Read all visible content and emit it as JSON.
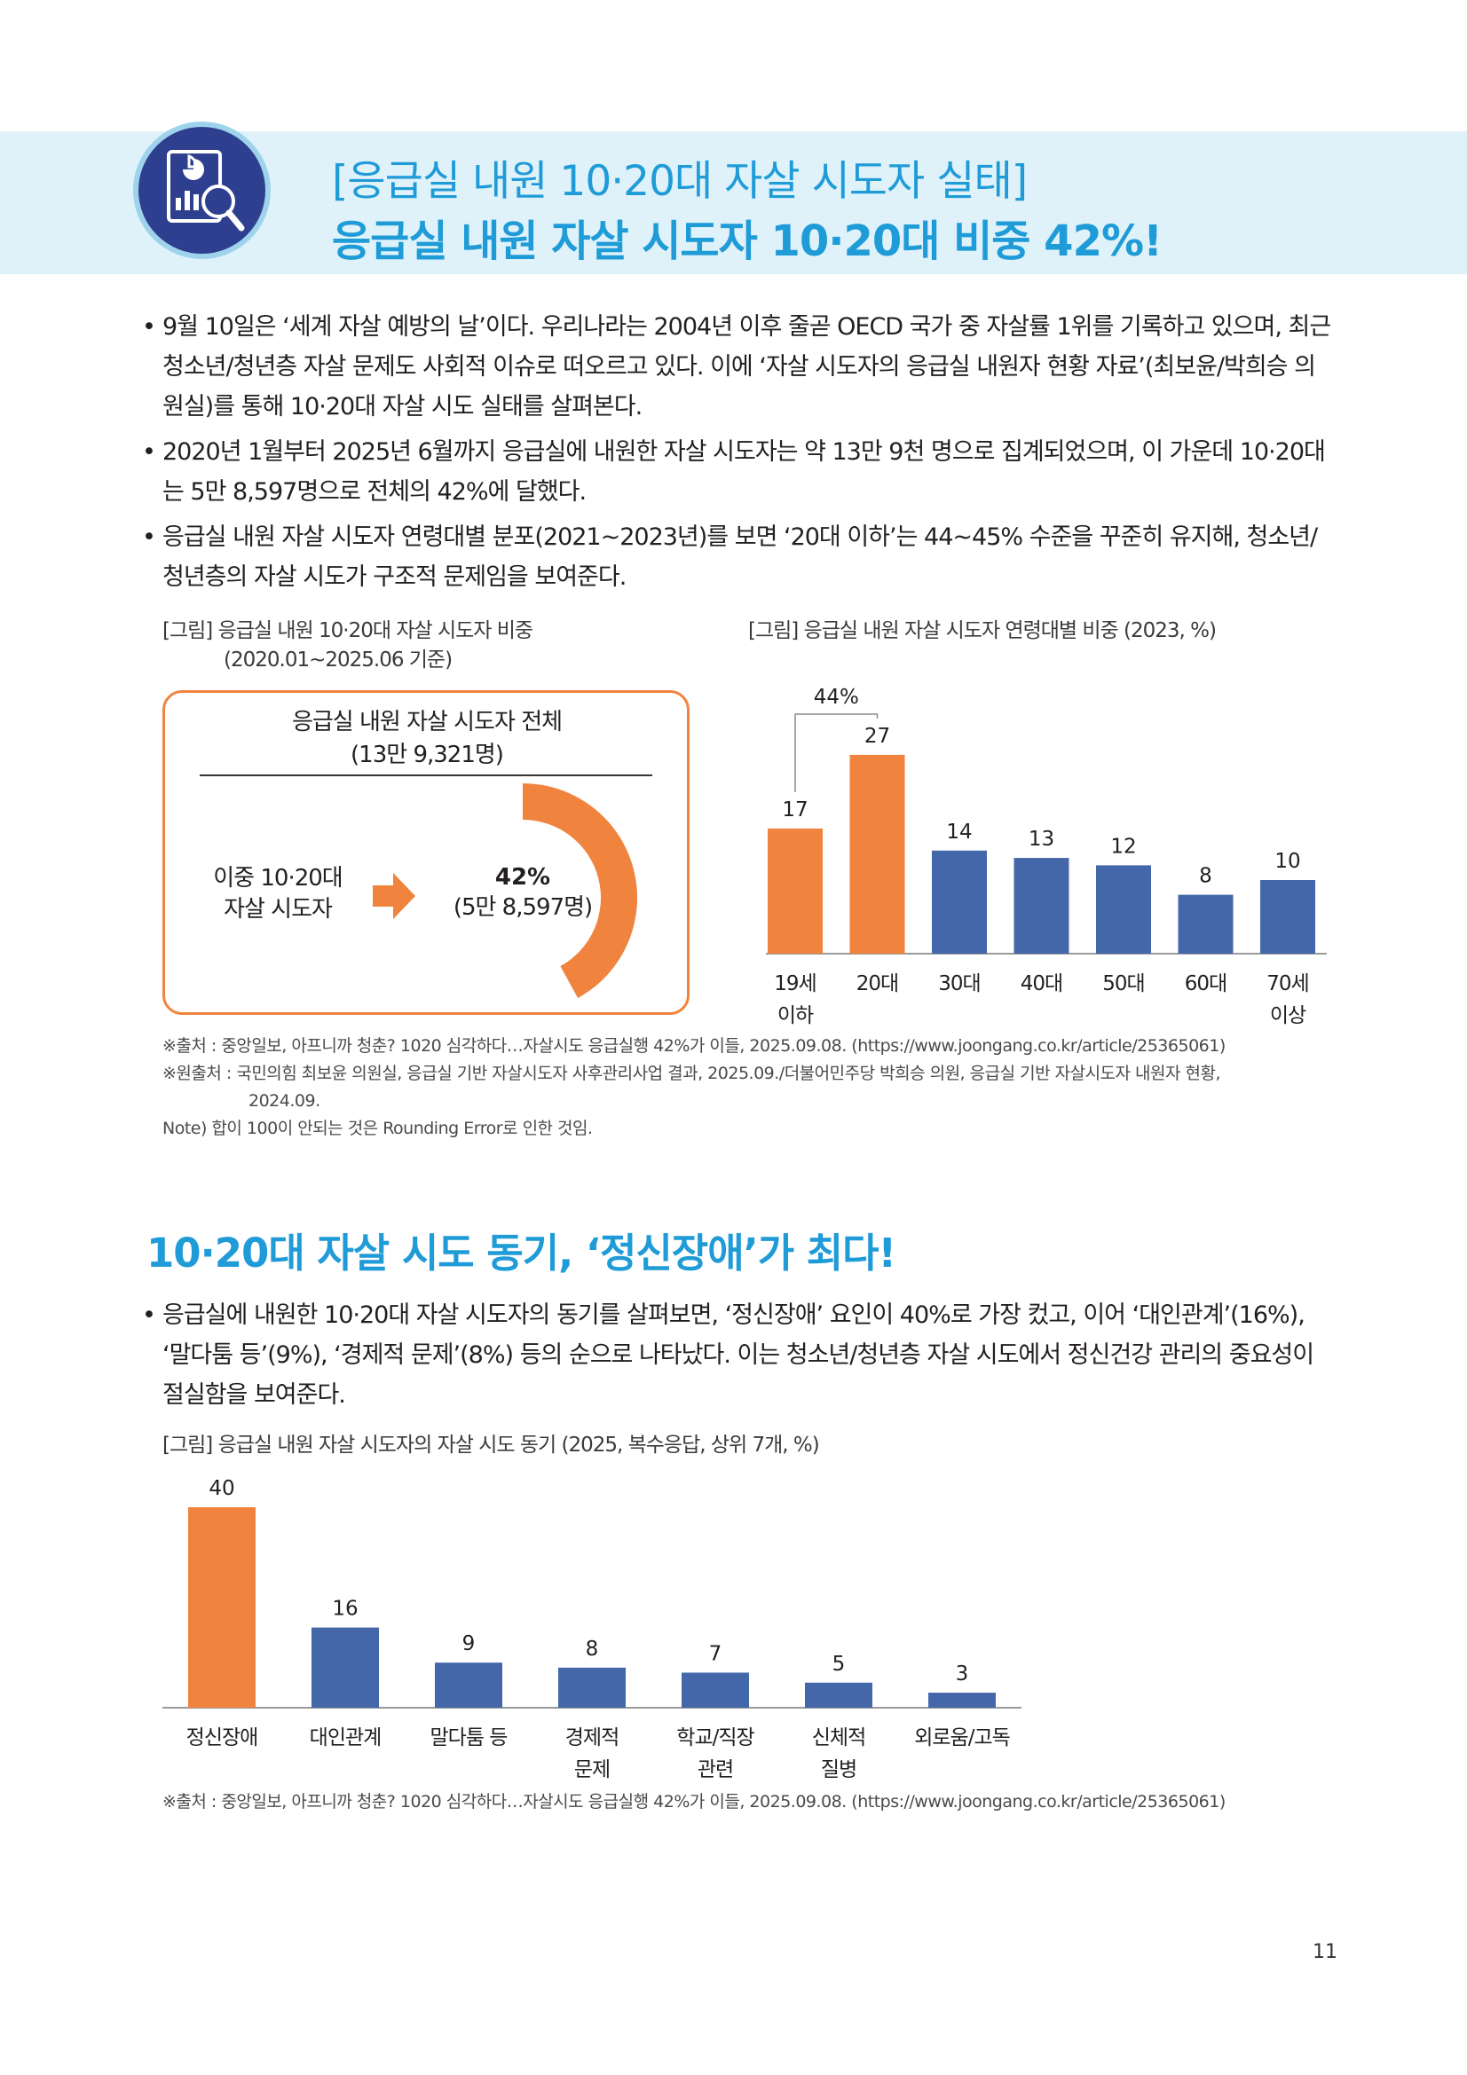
{
  "header": {
    "title_line1": "[응급실 내원 10·20대 자살 시도자 실태]",
    "title_line2": "응급실 내원 자살 시도자 10·20대 비중 42%!",
    "icon": "chart-magnifier-icon"
  },
  "section1": {
    "bullets": [
      "9월 10일은 ‘세계 자살 예방의 날’이다. 우리나라는 2004년 이후 줄곧 OECD 국가 중 자살률 1위를 기록하고 있으며, 최근 청소년/청년층 자살 문제도 사회적 이슈로 떠오르고 있다. 이에 ‘자살 시도자의 응급실 내원자 현황 자료’(최보윤/박희승 의원실)를 통해 10·20대 자살 시도 실태를 살펴본다.",
      "2020년 1월부터 2025년 6월까지 응급실에 내원한 자살 시도자는 약 13만 9천 명으로 집계되었으며, 이 가운데 10·20대는 5만 8,597명으로 전체의 42%에 달했다.",
      "응급실 내원 자살 시도자 연령대별 분포(2021~2023년)를 보면 ‘20대 이하’는 44~45% 수준을 꾸준히 유지해, 청소년/청년층의 자살 시도가 구조적 문제임을 보여준다."
    ]
  },
  "figure1": {
    "caption_line1": "[그림] 응급실 내원 10·20대 자살 시도자 비중",
    "caption_line2": "(2020.01~2025.06 기준)",
    "total_label": "응급실 내원 자살 시도자 전체",
    "total_value": "(13만 9,321명)",
    "sub_label_line1": "이중 10·20대",
    "sub_label_line2": "자살 시도자",
    "percent_label": "42%",
    "percent_value": "(5만 8,597명)",
    "share_fraction": 0.42,
    "accent_color": "#f0843f"
  },
  "figure2": {
    "caption": "[그림] 응급실 내원 자살 시도자 연령대별 비중 (2023, %)",
    "bracket_label": "44%",
    "chart_data": {
      "type": "bar",
      "categories": [
        [
          "19세",
          "이하"
        ],
        [
          "20대"
        ],
        [
          "30대"
        ],
        [
          "40대"
        ],
        [
          "50대"
        ],
        [
          "60대"
        ],
        [
          "70세",
          "이상"
        ]
      ],
      "values": [
        17,
        27,
        14,
        13,
        12,
        8,
        10
      ],
      "highlight": [
        0,
        1
      ],
      "ylim": [
        0,
        30
      ],
      "colors": {
        "highlight": "#f0843f",
        "default": "#4467a9"
      },
      "grid": false,
      "legend": "none"
    }
  },
  "sources1": {
    "line1": "※출처 : 중앙일보, 아프니까 청춘? 1020 심각하다…자살시도 응급실행 42%가 이들, 2025.09.08. (https://www.joongang.co.kr/article/25365061)",
    "line2": "※원출처 : 국민의힘 최보윤 의원실, 응급실 기반 자살시도자 사후관리사업 결과, 2025.09./더불어민주당 박희승 의원, 응급실 기반 자살시도자 내원자 현황,",
    "line3": "2024.09.",
    "line4": "Note) 합이 100이 안되는 것은 Rounding Error로 인한 것임."
  },
  "section2": {
    "heading": "10·20대 자살 시도 동기, ‘정신장애’가 최다!",
    "bullets": [
      "응급실에 내원한 10·20대 자살 시도자의 동기를 살펴보면, ‘정신장애’ 요인이 40%로 가장 컸고, 이어 ‘대인관계’(16%), ‘말다툼 등’(9%), ‘경제적 문제’(8%) 등의 순으로 나타났다. 이는 청소년/청년층 자살 시도에서 정신건강 관리의 중요성이 절실함을 보여준다."
    ]
  },
  "figure3": {
    "caption": "[그림] 응급실 내원 자살 시도자의 자살 시도 동기 (2025, 복수응답, 상위 7개, %)",
    "chart_data": {
      "type": "bar",
      "categories": [
        [
          "정신장애"
        ],
        [
          "대인관계"
        ],
        [
          "말다툼 등"
        ],
        [
          "경제적",
          "문제"
        ],
        [
          "학교/직장",
          "관련"
        ],
        [
          "신체적",
          "질병"
        ],
        [
          "외로움/고독"
        ]
      ],
      "values": [
        40,
        16,
        9,
        8,
        7,
        5,
        3
      ],
      "highlight": [
        0
      ],
      "ylim": [
        0,
        40
      ],
      "colors": {
        "highlight": "#f0843f",
        "default": "#4467a9"
      },
      "grid": false,
      "legend": "none"
    }
  },
  "sources2": {
    "line1": "※출처 : 중앙일보, 아프니까 청춘? 1020 심각하다…자살시도 응급실행 42%가 이들, 2025.09.08. (https://www.joongang.co.kr/article/25365061)"
  },
  "page": {
    "number": "11"
  }
}
